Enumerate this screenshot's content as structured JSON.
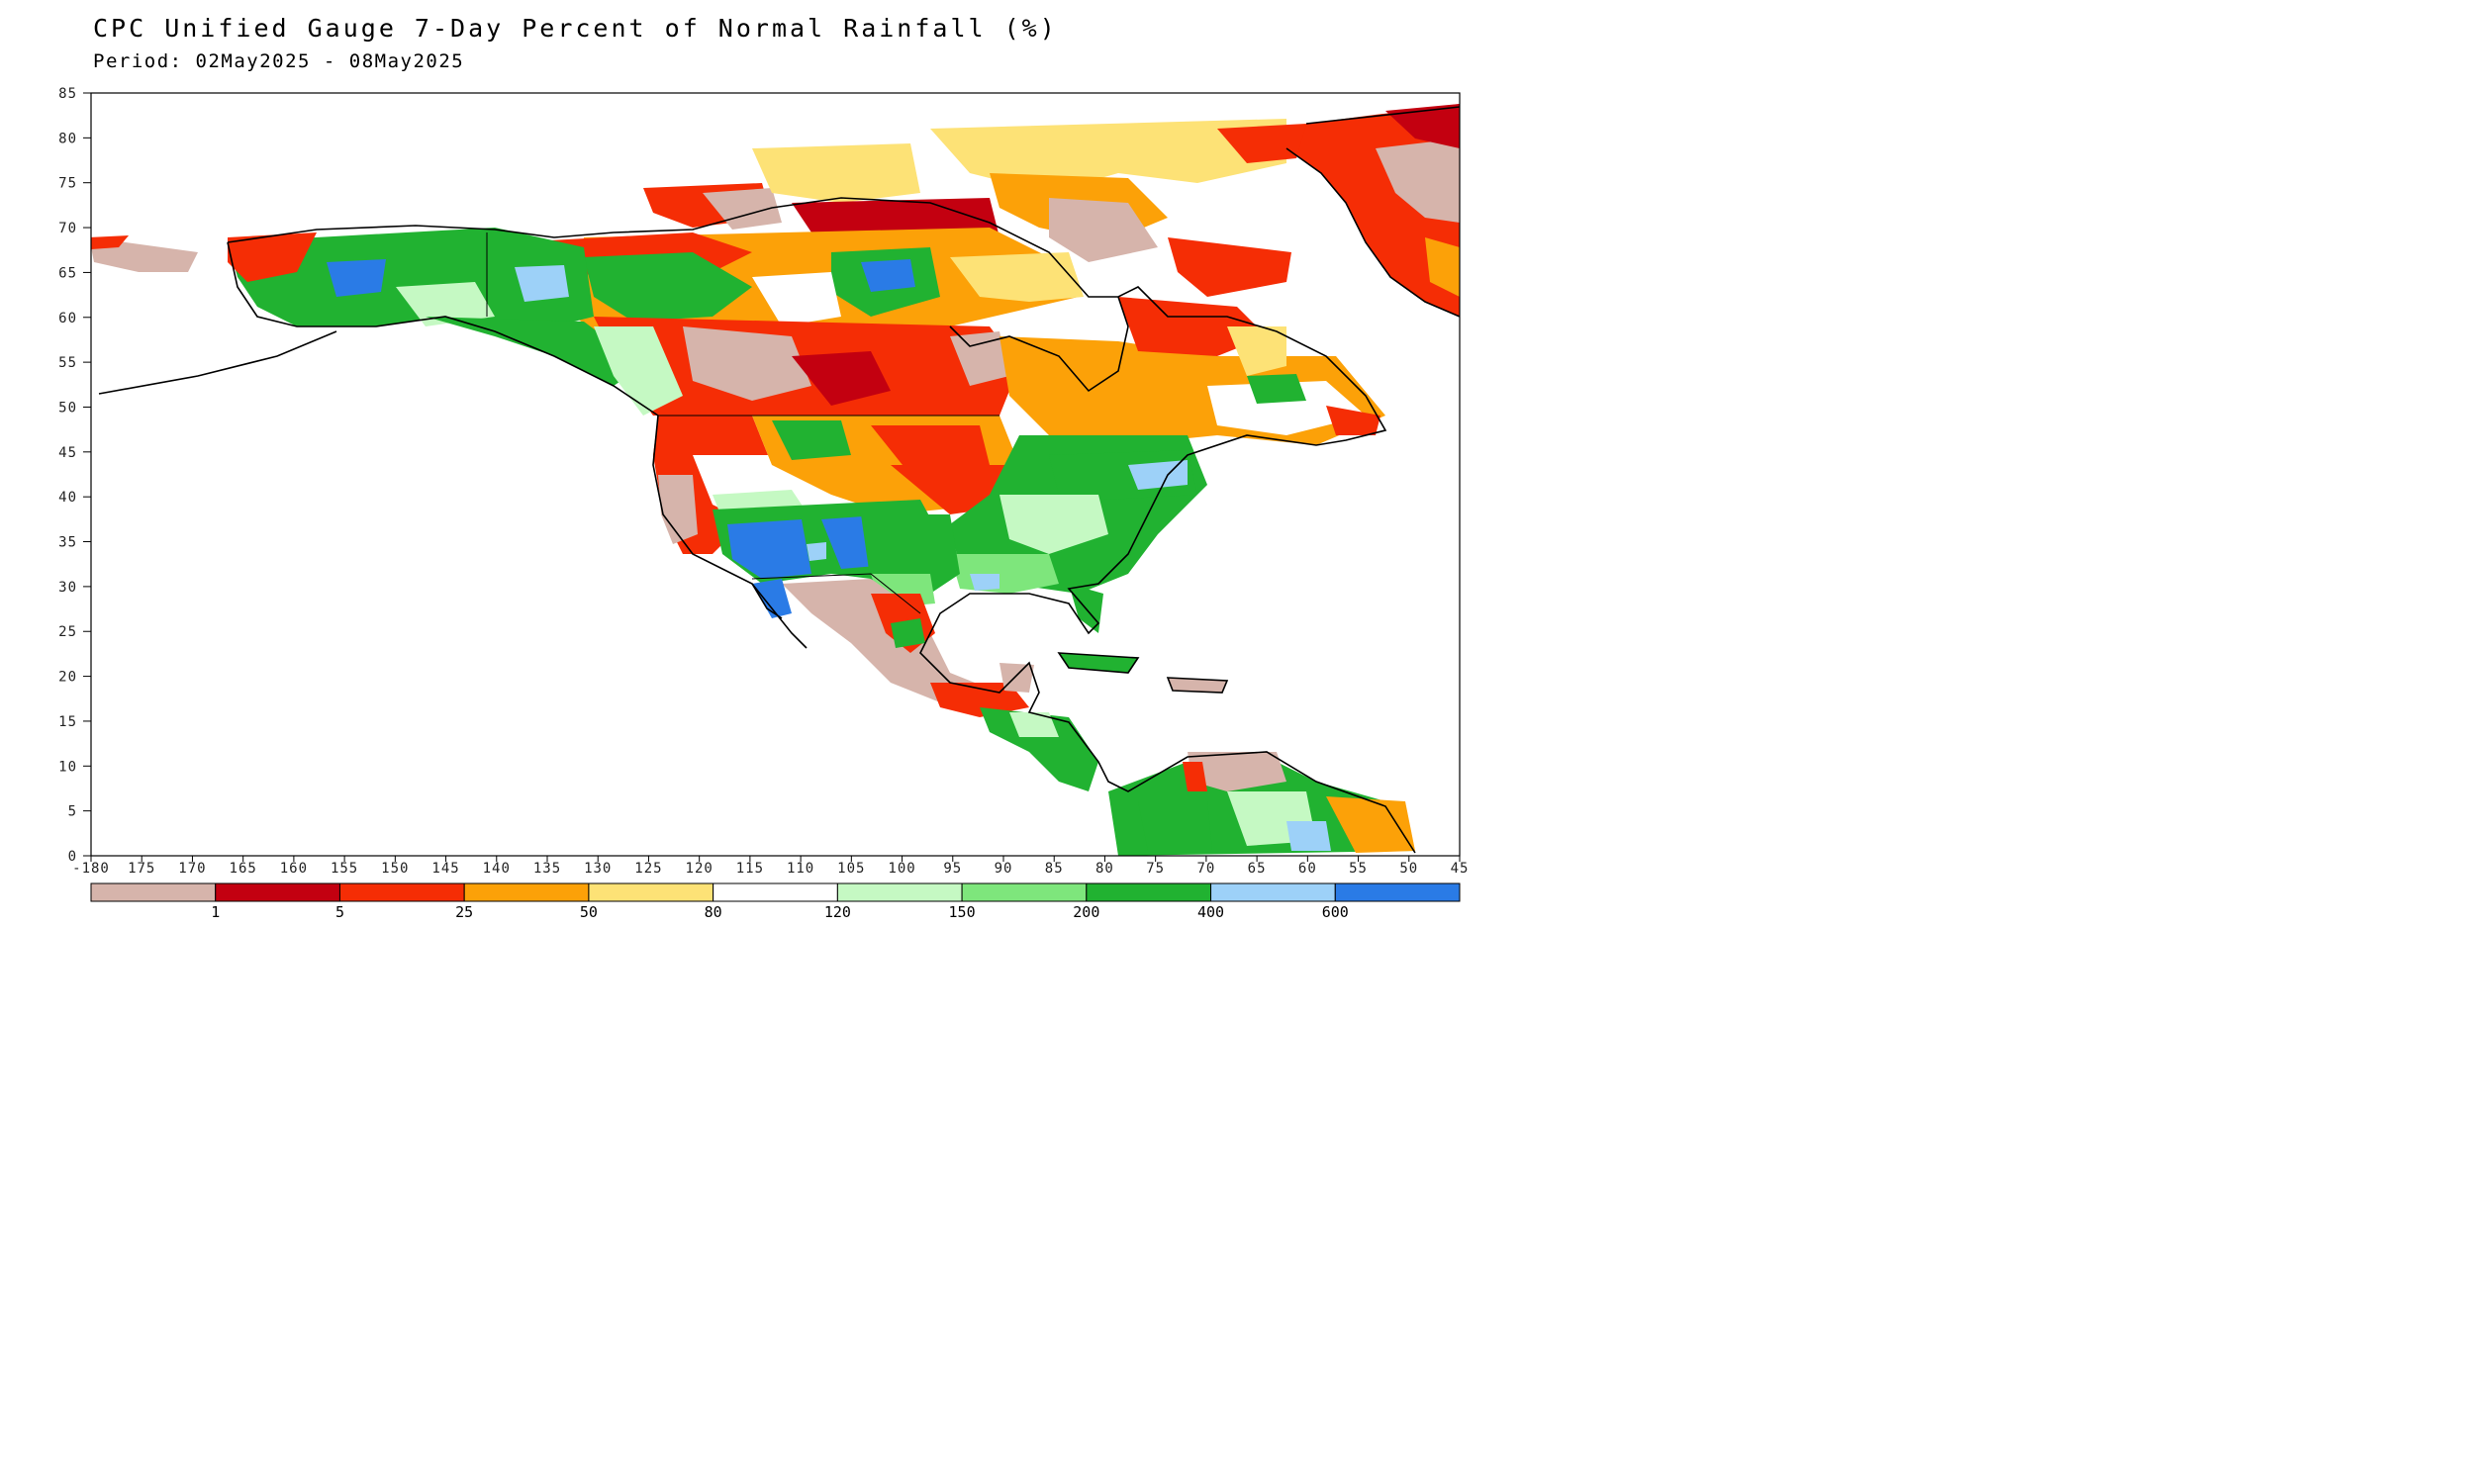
{
  "title": "CPC Unified Gauge 7-Day Percent of Normal Rainfall (%)",
  "subtitle": "Period: 02May2025 - 08May2025",
  "axes": {
    "lat_ticks": [
      "85",
      "80",
      "75",
      "70",
      "65",
      "60",
      "55",
      "50",
      "45",
      "40",
      "35",
      "30",
      "25",
      "20",
      "15",
      "10",
      "5",
      "0"
    ],
    "lon_ticks": [
      "-180",
      "175",
      "170",
      "165",
      "160",
      "155",
      "150",
      "145",
      "140",
      "135",
      "130",
      "125",
      "120",
      "115",
      "110",
      "105",
      "100",
      "95",
      "90",
      "85",
      "80",
      "75",
      "70",
      "65",
      "60",
      "55",
      "50",
      "45"
    ],
    "lat_range": [
      0,
      85
    ],
    "lon_range": [
      -180,
      -45
    ]
  },
  "colorbar": {
    "bins": [
      {
        "color": "#d6b4ab",
        "label": ""
      },
      {
        "color": "#c30010",
        "label": "1"
      },
      {
        "color": "#f52d05",
        "label": "5"
      },
      {
        "color": "#fca108",
        "label": "25"
      },
      {
        "color": "#fde276",
        "label": "50"
      },
      {
        "color": "#ffffff",
        "label": "80"
      },
      {
        "color": "#c5f9c3",
        "label": "120"
      },
      {
        "color": "#7ee67c",
        "label": "150"
      },
      {
        "color": "#21b231",
        "label": "200"
      },
      {
        "color": "#9dd1f8",
        "label": "400"
      },
      {
        "color": "#2a7be6",
        "label": "600"
      }
    ]
  },
  "map": {
    "region": "North America",
    "layers": [
      "land-outline",
      "rainfall-percent-of-normal"
    ]
  }
}
